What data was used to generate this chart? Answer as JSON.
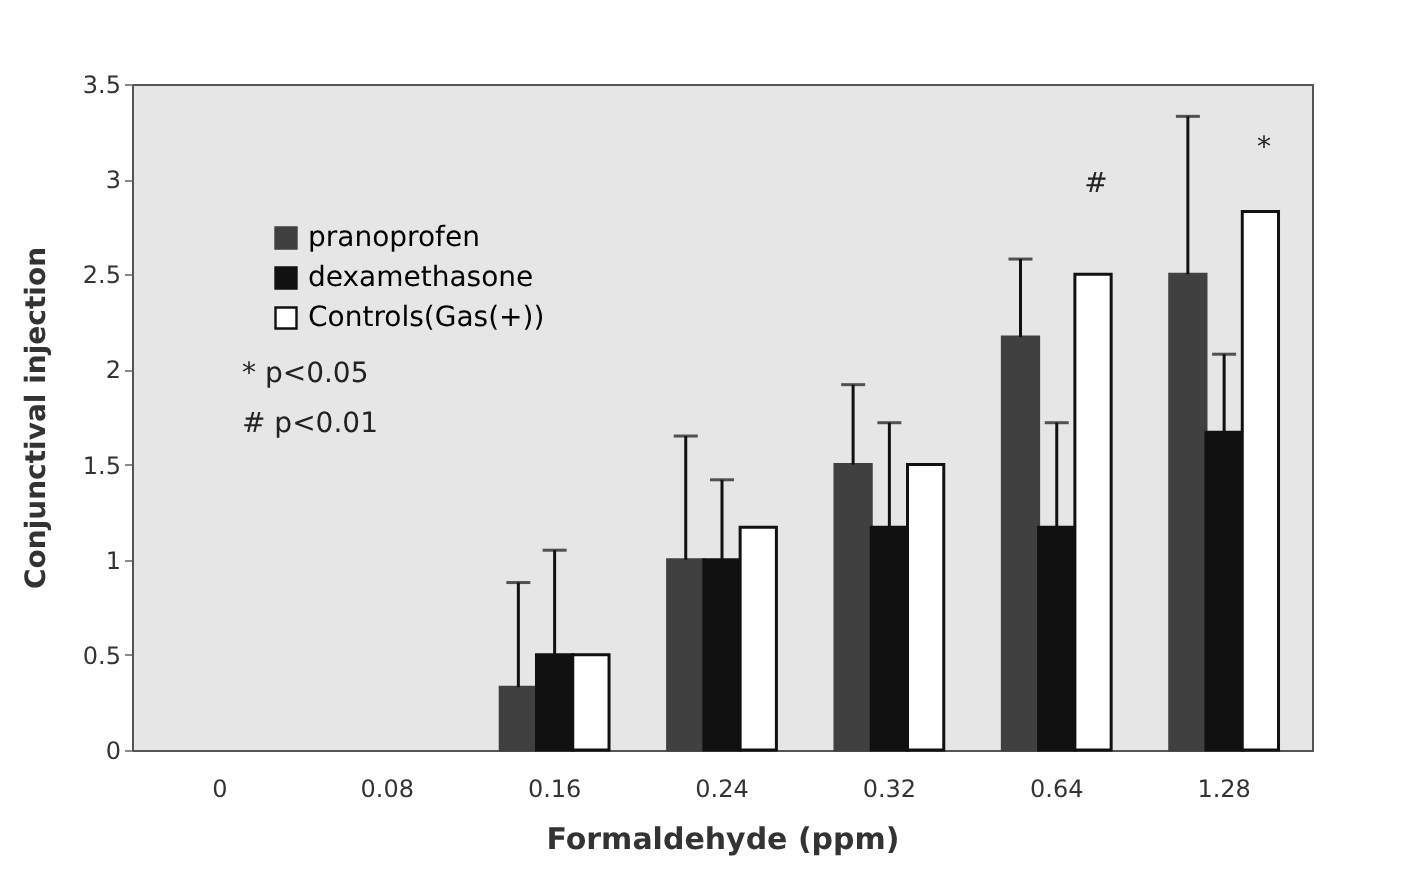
{
  "chart_data": {
    "type": "bar",
    "xlabel": "Formaldehyde (ppm)",
    "ylabel": "Conjunctival injection",
    "categories": [
      "0",
      "0.08",
      "0.16",
      "0.24",
      "0.32",
      "0.64",
      "1.28"
    ],
    "series": [
      {
        "name": "pranoprofen",
        "color": "#404040",
        "values": [
          null,
          null,
          0.33,
          1.0,
          1.5,
          2.17,
          2.5
        ],
        "errors": [
          null,
          null,
          [
            0.33,
            0.88
          ],
          [
            1.0,
            1.65
          ],
          [
            1.5,
            1.92
          ],
          [
            2.17,
            2.58
          ],
          [
            2.5,
            3.33
          ]
        ]
      },
      {
        "name": "dexamethasone",
        "color": "#111111",
        "values": [
          null,
          null,
          0.5,
          1.0,
          1.17,
          1.17,
          1.67
        ],
        "errors": [
          null,
          null,
          [
            0.5,
            1.05
          ],
          [
            1.0,
            1.42
          ],
          [
            1.17,
            1.72
          ],
          [
            1.17,
            1.72
          ],
          [
            1.67,
            2.08
          ]
        ]
      },
      {
        "name": "Controls(Gas(+))",
        "color": "#ffffff",
        "values": [
          null,
          null,
          0.5,
          1.17,
          1.5,
          2.5,
          2.83
        ]
      }
    ],
    "ylim": [
      0,
      3.5
    ],
    "yticks": [
      0,
      0.5,
      1,
      1.5,
      2,
      2.5,
      3,
      3.5
    ],
    "grid": false,
    "legend": "top left",
    "annotations": [
      "* p<0.05",
      "# p<0.01",
      "#",
      "*"
    ]
  }
}
